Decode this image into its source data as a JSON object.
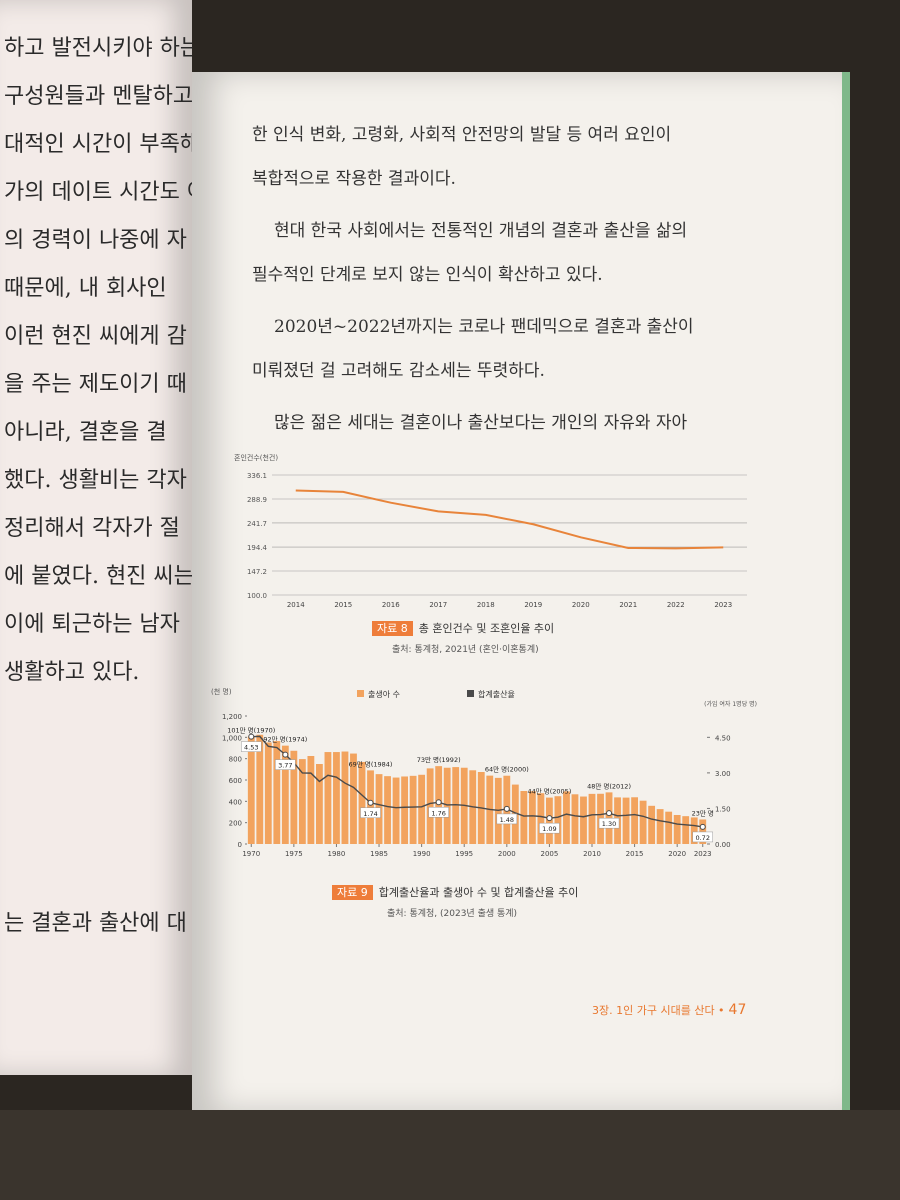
{
  "left_page": {
    "lines": [
      "하고 발전시키야 하는",
      "구성원들과 멘탈하고,",
      "대적인 시간이 부족해",
      "가의 데이트 시간도 어",
      "의 경력이 나중에 자",
      " 때문에, 내 회사인",
      "이런 현진 씨에게 감",
      "을 주는 제도이기 때",
      " 아니라, 결혼을 결",
      "했다. 생활비는 각자",
      " 정리해서 각자가 절",
      "에 붙였다. 현진 씨는",
      "이에 퇴근하는 남자",
      "생활하고 있다."
    ],
    "last_line": "는 결혼과 출산에 대"
  },
  "right_page": {
    "paragraphs": [
      [
        "한 인식 변화, 고령화, 사회적 안전망의 발달 등 여러 요인이",
        "복합적으로 작용한 결과이다."
      ],
      [
        "현대 한국 사회에서는 전통적인 개념의 결혼과 출산을 삶의",
        "필수적인 단계로 보지 않는 인식이 확산하고 있다."
      ],
      [
        "2020년~2022년까지는 코로나 팬데믹으로 결혼과 출산이",
        "미뤄졌던 걸 고려해도 감소세는 뚜렷하다."
      ],
      [
        "많은 젊은 세대는 결혼이나 출산보다는 개인의 자유와 자아"
      ]
    ],
    "footer": {
      "section": "3장. 1인 가구 시대를 산다 •",
      "page": "47"
    }
  },
  "chart_data": [
    {
      "type": "line",
      "label": "자료 8",
      "title": "총 혼인건수 및 조혼인율 추이",
      "source": "출처: 통계청, 2021년 (혼인·이혼통계)",
      "ylabel": "혼인건수(천건)",
      "categories": [
        "2014",
        "2015",
        "2016",
        "2017",
        "2018",
        "2019",
        "2020",
        "2021",
        "2022",
        "2023"
      ],
      "series": [
        {
          "color": "#e8843a",
          "values": [
            305.5,
            302.8,
            281.6,
            264.5,
            257.6,
            239.2,
            213.5,
            192.5,
            191.7,
            193.7
          ]
        }
      ],
      "ylim": [
        100,
        336.1
      ],
      "yticks": [
        {
          "value": 100,
          "label": "100.0"
        },
        147.2,
        194.4,
        241.7,
        288.9,
        336.1
      ],
      "grid": true
    },
    {
      "type": "combo",
      "label": "자료 9",
      "title": "합계출산율과 출생아 수 및 합계출산율 추이",
      "source": "출처: 통계청, (2023년 출생 통계)",
      "ylabel": "(천 명)",
      "y2label": "(가임 여자 1명당 명)",
      "x": [
        1970,
        1971,
        1972,
        1973,
        1974,
        1975,
        1976,
        1977,
        1978,
        1979,
        1980,
        1981,
        1982,
        1983,
        1984,
        1985,
        1986,
        1987,
        1988,
        1989,
        1990,
        1991,
        1992,
        1993,
        1994,
        1995,
        1996,
        1997,
        1998,
        1999,
        2000,
        2001,
        2002,
        2003,
        2004,
        2005,
        2006,
        2007,
        2008,
        2009,
        2010,
        2011,
        2012,
        2013,
        2014,
        2015,
        2016,
        2017,
        2018,
        2019,
        2020,
        2021,
        2022,
        2023
      ],
      "series": [
        {
          "name": "출생아 수",
          "type": "bar",
          "color": "#f2a35e",
          "values": [
            1007,
            1024,
            952,
            965,
            922,
            874,
            796,
            825,
            750,
            862,
            862,
            867,
            848,
            769,
            690,
            655,
            636,
            623,
            633,
            639,
            649,
            709,
            730,
            715,
            721,
            715,
            691,
            675,
            641,
            620,
            640,
            557,
            497,
            495,
            476,
            435,
            448,
            493,
            466,
            445,
            470,
            471,
            484,
            437,
            435,
            438,
            406,
            358,
            327,
            303,
            272,
            261,
            249,
            230
          ],
          "value_labels": [
            "101만 명(1970)",
            null,
            null,
            null,
            "92만 명(1974)",
            null,
            null,
            null,
            null,
            null,
            null,
            null,
            null,
            null,
            "69만 명(1984)",
            null,
            null,
            null,
            null,
            null,
            null,
            null,
            "73만 명(1992)",
            null,
            null,
            null,
            null,
            null,
            null,
            null,
            "64만 명(2000)",
            null,
            null,
            null,
            null,
            "44만 명(2005)",
            null,
            null,
            null,
            null,
            null,
            null,
            "48만 명(2012)",
            null,
            null,
            null,
            null,
            null,
            null,
            null,
            null,
            null,
            null,
            "23만 명"
          ]
        },
        {
          "name": "합계출산율",
          "type": "line",
          "axis": "y2",
          "color": "#4a4a4a",
          "values": [
            4.53,
            4.54,
            4.12,
            4.07,
            3.77,
            3.43,
            3.0,
            2.99,
            2.64,
            2.9,
            2.82,
            2.57,
            2.39,
            2.06,
            1.74,
            1.66,
            1.58,
            1.53,
            1.55,
            1.56,
            1.57,
            1.71,
            1.76,
            1.65,
            1.66,
            1.63,
            1.57,
            1.52,
            1.46,
            1.42,
            1.48,
            1.31,
            1.18,
            1.19,
            1.16,
            1.09,
            1.13,
            1.26,
            1.19,
            1.15,
            1.23,
            1.24,
            1.3,
            1.19,
            1.21,
            1.24,
            1.17,
            1.05,
            0.98,
            0.92,
            0.84,
            0.81,
            0.78,
            0.72
          ],
          "value_labels": [
            "4.53",
            null,
            null,
            null,
            "3.77",
            null,
            null,
            null,
            null,
            null,
            null,
            null,
            null,
            null,
            "1.74",
            null,
            null,
            null,
            null,
            null,
            null,
            null,
            "1.76",
            null,
            null,
            null,
            null,
            null,
            null,
            null,
            "1.48",
            null,
            null,
            null,
            null,
            "1.09",
            null,
            null,
            null,
            null,
            null,
            null,
            "1.30",
            null,
            null,
            null,
            null,
            null,
            null,
            null,
            null,
            null,
            null,
            "0.72"
          ]
        }
      ],
      "xlim": [
        1969.5,
        2023.5
      ],
      "xticks": [
        1970,
        1975,
        1980,
        1985,
        1990,
        1995,
        2000,
        2005,
        2010,
        2015,
        2020,
        2023
      ],
      "ylim": [
        0,
        1200
      ],
      "yticks": [
        0,
        200,
        400,
        600,
        800,
        {
          "value": 1000,
          "label": "1,000"
        },
        {
          "value": 1200,
          "label": "1,200"
        }
      ],
      "y2lim": [
        0,
        5.4
      ],
      "y2ticks": [
        {
          "value": 0,
          "label": "0.00"
        },
        {
          "value": 1.5,
          "label": "1.50"
        },
        {
          "value": 3,
          "label": "3.00"
        },
        {
          "value": 4.5,
          "label": "4.50"
        }
      ]
    }
  ]
}
